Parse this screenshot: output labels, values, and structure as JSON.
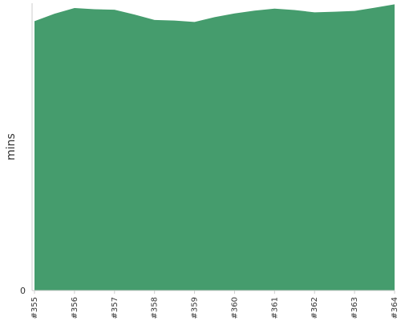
{
  "chart_data": {
    "type": "area",
    "title": "",
    "xlabel": "",
    "ylabel": "mins",
    "categories": [
      "#355",
      "#356",
      "#357",
      "#358",
      "#359",
      "#360",
      "#361",
      "#362",
      "#363",
      "#364"
    ],
    "x": [
      0,
      0.5,
      1,
      1.5,
      2,
      2.5,
      3,
      3.5,
      4,
      4.5,
      5,
      5.5,
      6,
      6.5,
      7,
      7.5,
      8,
      8.5,
      9
    ],
    "values": [
      94.7,
      97.3,
      99.3,
      98.9,
      98.7,
      97.0,
      95.1,
      94.9,
      94.4,
      96.1,
      97.4,
      98.4,
      99.1,
      98.6,
      97.8,
      98.0,
      98.3,
      99.4,
      100.6
    ],
    "ylim": [
      0,
      101
    ],
    "yticks": [
      0
    ],
    "ytick_labels": [
      "0"
    ],
    "grid": false,
    "legend": "none",
    "fill_color": "#459c6d"
  }
}
